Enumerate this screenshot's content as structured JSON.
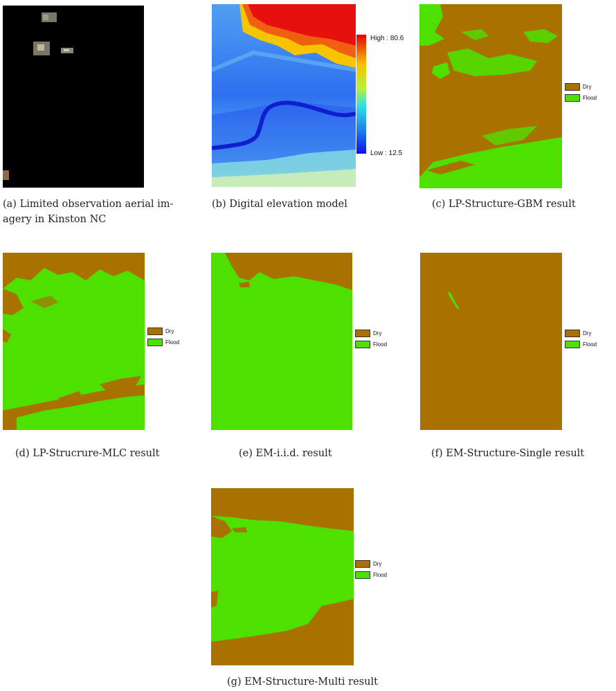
{
  "colors": {
    "dry": "#a87100",
    "flood": "#4ee000",
    "aerial_bg": "#000000"
  },
  "legend": {
    "dry_label": "Dry",
    "flood_label": "Flood"
  },
  "figures": {
    "a": {
      "caption_line1": "(a) Limited observation aerial im-",
      "caption_line2": "agery in Kinston NC"
    },
    "b": {
      "caption": "(b) Digital elevation model",
      "high_label": "High : 80.6",
      "low_label": "Low : 12.5"
    },
    "c": {
      "caption": "(c) LP-Structure-GBM result"
    },
    "d": {
      "caption": "(d) LP-Strucrure-MLC result"
    },
    "e": {
      "caption": "(e) EM-i.i.d. result"
    },
    "f": {
      "caption": "(f) EM-Structure-Single result"
    },
    "g": {
      "caption": "(g) EM-Structure-Multi result"
    }
  }
}
